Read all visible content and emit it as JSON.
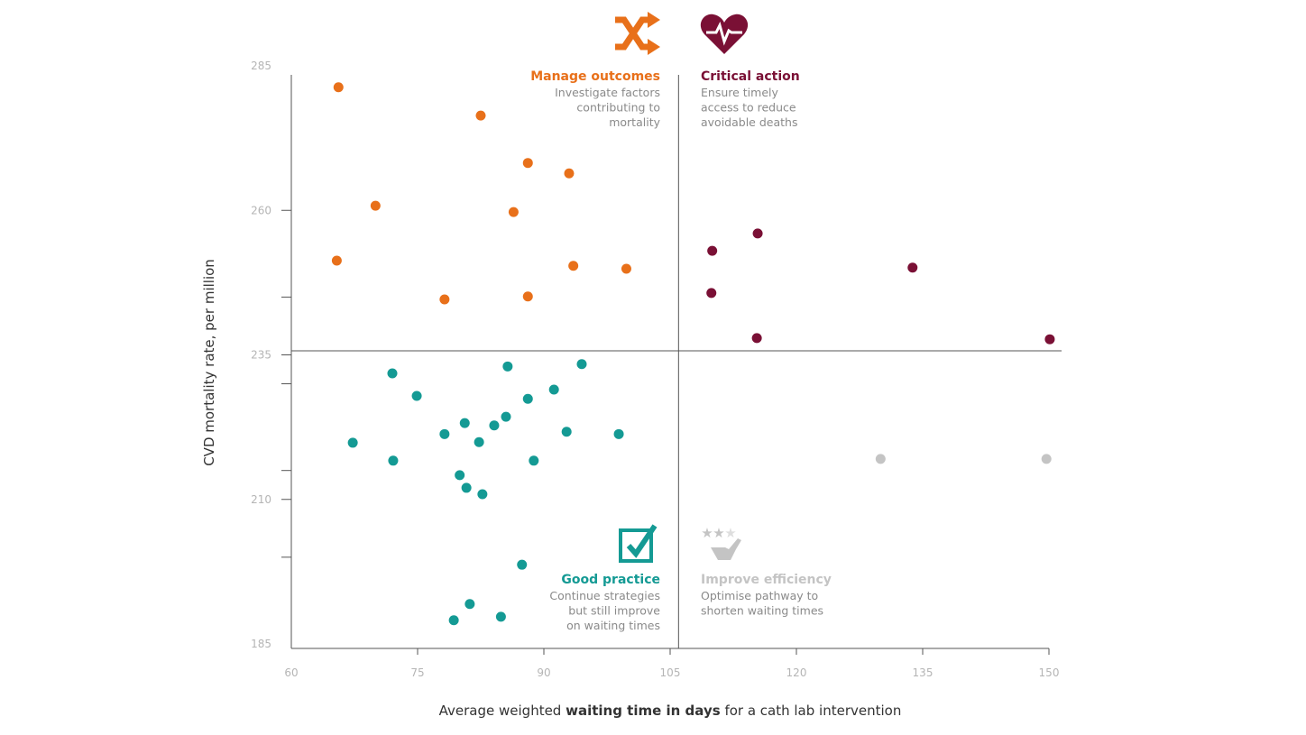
{
  "chart_data": {
    "type": "scatter",
    "title": "",
    "xlabel_parts": [
      {
        "text": "Average weighted ",
        "bold": false
      },
      {
        "text": "waiting time in days",
        "bold": true
      },
      {
        "text": " for a cath lab intervention",
        "bold": false
      }
    ],
    "ylabel": "CVD mortality rate, per million",
    "xlim": [
      60,
      150
    ],
    "ylim": [
      185,
      285
    ],
    "x_ticks": [
      60,
      75,
      90,
      105,
      120,
      135,
      150
    ],
    "y_tick_labels": [
      285,
      260,
      235,
      210,
      185
    ],
    "y_minor_ticks": [
      245,
      230,
      215,
      200
    ],
    "grid": false,
    "thresholds": {
      "x": 106,
      "y": 235.7
    },
    "colors": {
      "manage": "#e8701a",
      "critical": "#7a1035",
      "good": "#149a94",
      "improve": "#c4c4c4",
      "axis": "#555555"
    },
    "quadrants": [
      {
        "id": "manage",
        "icon": "shuffle-icon",
        "title": "Manage outcomes",
        "lines": [
          "Investigate factors",
          "contributing to",
          "mortality"
        ],
        "align": "right"
      },
      {
        "id": "critical",
        "icon": "heartbeat-icon",
        "title": "Critical action",
        "lines": [
          "Ensure timely",
          "access to reduce",
          "avoidable deaths"
        ],
        "align": "left"
      },
      {
        "id": "good",
        "icon": "checkbox-icon",
        "title": "Good practice",
        "lines": [
          "Continue strategies",
          "but still improve",
          "on waiting times"
        ],
        "align": "right"
      },
      {
        "id": "improve",
        "icon": "stars-hand-icon",
        "title": "Improve efficiency",
        "lines": [
          "Optimise pathway to",
          "shorten waiting times"
        ],
        "align": "left"
      }
    ],
    "series": [
      {
        "group": "manage",
        "points": [
          [
            65.6,
            281.3
          ],
          [
            82.5,
            276.4
          ],
          [
            88.1,
            268.2
          ],
          [
            93.0,
            266.4
          ],
          [
            70.0,
            260.8
          ],
          [
            86.4,
            259.7
          ],
          [
            65.4,
            251.3
          ],
          [
            93.5,
            250.4
          ],
          [
            99.8,
            249.9
          ],
          [
            78.2,
            244.6
          ],
          [
            88.1,
            245.1
          ]
        ]
      },
      {
        "group": "critical",
        "points": [
          [
            115.4,
            256.0
          ],
          [
            110.0,
            253.0
          ],
          [
            133.8,
            250.1
          ],
          [
            109.9,
            245.7
          ],
          [
            115.3,
            237.9
          ],
          [
            150.1,
            237.7
          ]
        ]
      },
      {
        "group": "improve",
        "points": [
          [
            130.0,
            217.0
          ],
          [
            149.7,
            217.0
          ]
        ]
      },
      {
        "group": "good",
        "points": [
          [
            72.0,
            231.8
          ],
          [
            85.7,
            233.0
          ],
          [
            94.5,
            233.4
          ],
          [
            74.9,
            227.9
          ],
          [
            91.2,
            229.0
          ],
          [
            88.1,
            227.4
          ],
          [
            85.5,
            224.3
          ],
          [
            80.6,
            223.2
          ],
          [
            84.1,
            222.8
          ],
          [
            78.2,
            221.3
          ],
          [
            92.7,
            221.7
          ],
          [
            98.9,
            221.3
          ],
          [
            67.3,
            219.8
          ],
          [
            82.3,
            219.9
          ],
          [
            72.1,
            216.7
          ],
          [
            88.8,
            216.7
          ],
          [
            80.0,
            214.2
          ],
          [
            80.8,
            212.0
          ],
          [
            82.7,
            210.9
          ],
          [
            87.4,
            198.7
          ],
          [
            81.2,
            191.9
          ],
          [
            84.9,
            189.7
          ],
          [
            79.3,
            189.1
          ]
        ]
      }
    ]
  }
}
